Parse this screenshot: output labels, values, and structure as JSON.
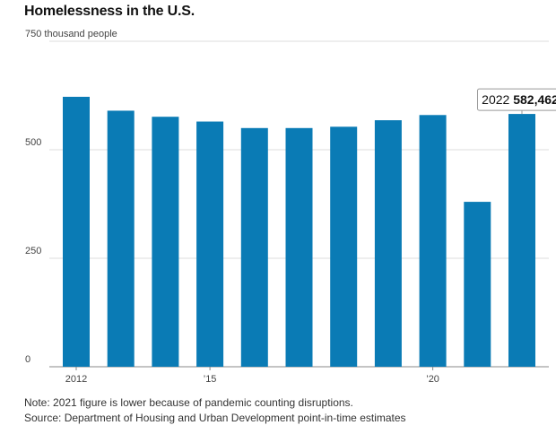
{
  "title": "Homelessness in the U.S.",
  "note": "Note: 2021 figure is lower because of pandemic counting disruptions.",
  "source": "Source: Department of Housing and Urban Development point-in-time estimates",
  "colors": {
    "bar": "#0a7bb5",
    "grid": "#dddddd",
    "axis": "#888888"
  },
  "chart_data": {
    "type": "bar",
    "categories": [
      "2012",
      "2013",
      "2014",
      "2015",
      "2016",
      "2017",
      "2018",
      "2019",
      "2020",
      "2021",
      "2022"
    ],
    "values": [
      622000,
      590000,
      576000,
      565000,
      550000,
      550000,
      553000,
      568000,
      580000,
      380000,
      582462
    ],
    "ylim": [
      0,
      750000
    ],
    "yticks": [
      {
        "value": 0,
        "label": "0"
      },
      {
        "value": 250000,
        "label": "250"
      },
      {
        "value": 500000,
        "label": "500"
      },
      {
        "value": 750000,
        "label": "750 thousand people"
      }
    ],
    "xtick_labels": [
      {
        "category": "2012",
        "label": "2012"
      },
      {
        "category": "2015",
        "label": "’15"
      },
      {
        "category": "2020",
        "label": "’20"
      }
    ],
    "callout": {
      "category": "2022",
      "year": "2022",
      "value_text": "582,462"
    },
    "grid": true
  }
}
